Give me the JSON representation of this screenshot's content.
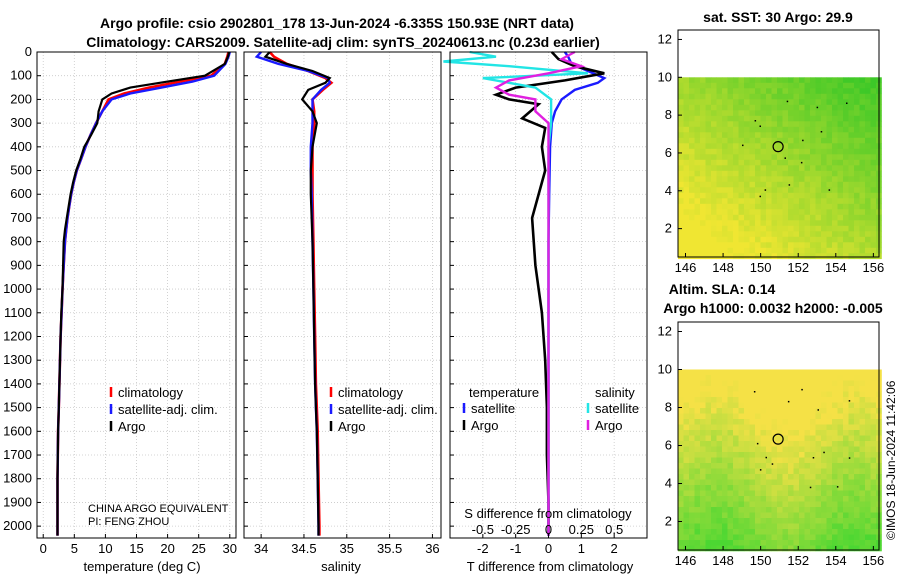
{
  "title_line1": "Argo profile: csio 2902801_178 13-Jun-2024 -6.335S 150.93E (NRT data)",
  "title_line2": "Climatology: CARS2009. Satellite-adj clim: synTS_20240613.nc (0.23d earlier)",
  "sst_title": "sat. SST: 30 Argo: 29.9",
  "alt_title1": "Altim. SLA: 0.14",
  "alt_title2": "Argo h1000: 0.0032 h2000: -0.005",
  "watermark": "©IMOS 18-Jun-2024 11:42:06",
  "credit_line1": "CHINA ARGO EQUIVALENT",
  "credit_line2": "PI: FENG ZHOU",
  "colors": {
    "climatology": "#ff0000",
    "satellite": "#1a1aff",
    "argo": "#000000",
    "sat_s": "#22e5e5",
    "argo_s": "#e020e0"
  },
  "chart_data": [
    {
      "type": "line",
      "id": "temperature",
      "xlabel": "temperature (deg C)",
      "ylabel": "",
      "xlim": [
        -1,
        31
      ],
      "ylim": [
        0,
        2050
      ],
      "xticks": [
        0,
        5,
        10,
        15,
        20,
        25,
        30
      ],
      "yticks": [
        0,
        100,
        200,
        300,
        400,
        500,
        600,
        700,
        800,
        900,
        1000,
        1100,
        1200,
        1300,
        1400,
        1500,
        1600,
        1700,
        1800,
        1900,
        2000
      ],
      "legend": [
        "climatology",
        "satellite-adj. clim.",
        "Argo"
      ],
      "series": [
        {
          "name": "climatology",
          "x": [
            29.8,
            29.6,
            29.2,
            27,
            22,
            17,
            13,
            10.5,
            9.5,
            8.5,
            7.6,
            6.8,
            6.1,
            5.4,
            4.9,
            4.5,
            4.2,
            3.9,
            3.7,
            3.5,
            3.3,
            3.1,
            2.95,
            2.8,
            2.7,
            2.6,
            2.5,
            2.4,
            2.35,
            2.3,
            2.3
          ],
          "depth": [
            0,
            20,
            50,
            100,
            125,
            150,
            175,
            200,
            250,
            300,
            350,
            400,
            450,
            500,
            550,
            600,
            650,
            700,
            750,
            800,
            900,
            1000,
            1100,
            1200,
            1300,
            1400,
            1500,
            1600,
            1700,
            1800,
            2040
          ]
        },
        {
          "name": "satellite-adj. clim.",
          "x": [
            30,
            29.8,
            29.3,
            27.5,
            24,
            19,
            14,
            11,
            9.5,
            8.5,
            7.6,
            6.8,
            6.1,
            5.4,
            4.9,
            4.5,
            4.2,
            3.9,
            3.7,
            3.5,
            3.3,
            3.1,
            2.95,
            2.8,
            2.7,
            2.6,
            2.5,
            2.4,
            2.35,
            2.3,
            2.3
          ],
          "depth": [
            0,
            20,
            50,
            100,
            125,
            150,
            175,
            200,
            250,
            300,
            350,
            400,
            450,
            500,
            550,
            600,
            650,
            700,
            750,
            800,
            900,
            1000,
            1100,
            1200,
            1300,
            1400,
            1500,
            1600,
            1700,
            1800,
            2040
          ]
        },
        {
          "name": "Argo",
          "x": [
            29.9,
            29.7,
            29.2,
            26,
            20,
            14,
            11,
            9.5,
            8.9,
            8.7,
            7.7,
            6.6,
            6,
            5.3,
            4.8,
            4.4,
            4.1,
            3.8,
            3.5,
            3.3,
            3.2,
            3.1,
            2.9,
            2.8,
            2.7,
            2.6,
            2.5,
            2.4,
            2.35,
            2.3,
            2.3
          ],
          "depth": [
            0,
            20,
            50,
            100,
            125,
            150,
            175,
            200,
            250,
            300,
            350,
            400,
            450,
            500,
            550,
            600,
            650,
            700,
            750,
            800,
            900,
            1000,
            1100,
            1200,
            1300,
            1400,
            1500,
            1600,
            1700,
            1800,
            2040
          ]
        }
      ]
    },
    {
      "type": "line",
      "id": "salinity",
      "xlabel": "salinity",
      "xlim": [
        33.8,
        36.1
      ],
      "ylim": [
        0,
        2050
      ],
      "xticks": [
        34,
        34.5,
        35,
        35.5,
        36
      ],
      "xticklabels": [
        "34",
        "34.5",
        "35",
        "35.5",
        "36"
      ],
      "legend": [
        "climatology",
        "satellite-adj. clim.",
        "Argo"
      ],
      "series": [
        {
          "name": "climatology",
          "x": [
            34.1,
            34.15,
            34.3,
            34.55,
            34.75,
            34.82,
            34.72,
            34.6,
            34.62,
            34.62,
            34.6,
            34.6,
            34.6,
            34.61,
            34.62,
            34.63,
            34.64,
            34.65,
            34.66,
            34.67,
            34.68,
            34.68
          ],
          "depth": [
            0,
            20,
            50,
            80,
            110,
            130,
            160,
            200,
            250,
            300,
            400,
            500,
            600,
            800,
            1000,
            1200,
            1400,
            1500,
            1600,
            1800,
            2000,
            2040
          ]
        },
        {
          "name": "satellite-adj. clim.",
          "x": [
            34.0,
            33.95,
            34.2,
            34.55,
            34.78,
            34.8,
            34.7,
            34.6,
            34.6,
            34.6,
            34.58,
            34.58,
            34.59,
            34.6,
            34.61,
            34.62,
            34.63,
            34.64,
            34.65,
            34.66,
            34.67,
            34.67
          ],
          "depth": [
            0,
            20,
            50,
            80,
            110,
            130,
            160,
            200,
            250,
            300,
            400,
            500,
            600,
            800,
            1000,
            1200,
            1400,
            1500,
            1600,
            1800,
            2000,
            2040
          ]
        },
        {
          "name": "Argo",
          "x": [
            34.1,
            34.05,
            34.3,
            34.6,
            34.8,
            34.75,
            34.55,
            34.48,
            34.6,
            34.65,
            34.6,
            34.58,
            34.58,
            34.6,
            34.61,
            34.62,
            34.63,
            34.64,
            34.65,
            34.66,
            34.67,
            34.67
          ],
          "depth": [
            0,
            20,
            50,
            80,
            110,
            130,
            160,
            200,
            250,
            300,
            400,
            500,
            600,
            800,
            1000,
            1200,
            1400,
            1500,
            1600,
            1800,
            2000,
            2040
          ]
        }
      ]
    },
    {
      "type": "line",
      "id": "difference",
      "xlabel": "T difference from climatology",
      "xlabel2": "S difference from climatology",
      "xlim": [
        -3,
        3
      ],
      "ylim": [
        0,
        2050
      ],
      "xticks": [
        -2,
        -1,
        0,
        1,
        2
      ],
      "s_xticks": [
        -0.5,
        -0.25,
        0,
        0.25,
        0.5
      ],
      "s_xticklabels": [
        "-0.5",
        "-0.25",
        "0",
        "0.25",
        "0.5"
      ],
      "legend_titles": [
        "temperature",
        "salinity"
      ],
      "legend": [
        "satellite",
        "Argo",
        "satellite",
        "Argo"
      ],
      "series": [
        {
          "name": "T satellite",
          "x": [
            0.5,
            0.6,
            0.7,
            1.2,
            1.7,
            1.5,
            0.8,
            0.4,
            0.2,
            0.1,
            0.05,
            0.02,
            0,
            0,
            0,
            0
          ],
          "depth": [
            0,
            20,
            50,
            80,
            110,
            130,
            160,
            200,
            250,
            300,
            400,
            600,
            800,
            1200,
            1600,
            2040
          ]
        },
        {
          "name": "T Argo",
          "x": [
            0.1,
            0.3,
            0.8,
            1.7,
            0.5,
            -1,
            -1.6,
            -1.2,
            -0.3,
            -0.8,
            -0.1,
            -0.2,
            -0.1,
            -0.5,
            -0.4,
            -0.2,
            -0.1,
            -0.05,
            -0.05,
            0,
            0
          ],
          "depth": [
            0,
            30,
            60,
            90,
            120,
            150,
            180,
            200,
            220,
            280,
            320,
            400,
            500,
            700,
            900,
            1100,
            1300,
            1500,
            1700,
            1900,
            2040
          ]
        },
        {
          "name": "S satellite",
          "x": [
            -0.6,
            -0.4,
            -0.8,
            -0.3,
            0.3,
            -0.5,
            -0.1,
            0.02,
            0.02,
            0,
            0,
            0,
            0,
            0,
            0
          ],
          "depth": [
            0,
            20,
            40,
            60,
            90,
            110,
            150,
            200,
            300,
            400,
            600,
            800,
            1200,
            1600,
            2040
          ]
        },
        {
          "name": "S Argo",
          "x": [
            0.2,
            0.1,
            0.25,
            0,
            -0.3,
            -0.4,
            -0.3,
            -0.1,
            -0.1,
            0,
            0,
            0,
            0,
            0
          ],
          "depth": [
            0,
            30,
            60,
            90,
            120,
            150,
            180,
            200,
            250,
            300,
            400,
            800,
            1400,
            2040
          ]
        }
      ]
    },
    {
      "type": "heatmap",
      "id": "sst_map",
      "title": "sat. SST: 30 Argo: 29.9",
      "xlim": [
        145.6,
        156.3
      ],
      "ylim": [
        0.5,
        12.5
      ],
      "xticks": [
        146,
        148,
        150,
        152,
        154,
        156
      ],
      "yticks": [
        2,
        4,
        6,
        8,
        10,
        12
      ],
      "data_top": 10,
      "float_position": [
        150.93,
        6.335
      ]
    },
    {
      "type": "heatmap",
      "id": "sla_map",
      "title": "Altim. SLA: 0.14",
      "xlim": [
        145.6,
        156.3
      ],
      "ylim": [
        0.5,
        12.5
      ],
      "xticks": [
        146,
        148,
        150,
        152,
        154,
        156
      ],
      "yticks": [
        2,
        4,
        6,
        8,
        10,
        12
      ],
      "data_top": 10,
      "float_position": [
        150.93,
        6.335
      ]
    }
  ]
}
